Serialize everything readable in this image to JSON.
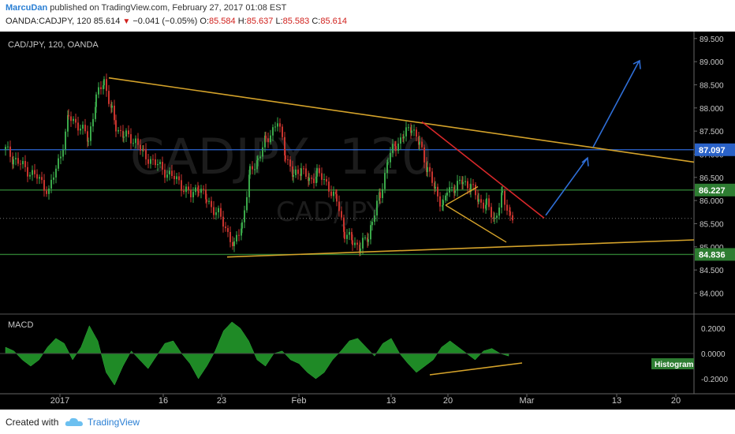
{
  "header": {
    "author": "MarcuDan",
    "published_text": "published on TradingView.com, February 27, 2017 01:08 EST",
    "symbol_info": "OANDA:CADJPY, 120",
    "last": "85.614",
    "down_arrow": "▼",
    "change": "−0.041 (−0.05%)",
    "o_label": "O:",
    "o_value": "85.584",
    "h_label": "H:",
    "h_value": "85.637",
    "l_label": "L:",
    "l_value": "85.583",
    "c_label": "C:",
    "c_value": "85.614"
  },
  "footer": {
    "created_with": "Created with",
    "brand": "TradingView"
  },
  "chart_data": {
    "type": "candlestick",
    "title": "CAD/JPY, 120, OANDA",
    "watermark_big": "CADJPY, 120",
    "watermark_small": "CAD/JPY",
    "y_ticks": [
      "89.500",
      "89.000",
      "88.500",
      "88.000",
      "87.500",
      "87.000",
      "86.500",
      "86.000",
      "85.500",
      "85.000",
      "84.500",
      "84.000"
    ],
    "ylim": [
      83.65,
      89.65
    ],
    "x_ticks": [
      "2017",
      "16",
      "23",
      "Feb",
      "13",
      "20",
      "Mar",
      "13",
      "20"
    ],
    "price_labels": [
      {
        "value": "87.097",
        "color": "#2a62c8"
      },
      {
        "value": "86.227",
        "color": "#2e7d32"
      },
      {
        "value": "84.836",
        "color": "#2e7d32"
      }
    ],
    "horizontal_lines": [
      {
        "value": 87.097,
        "color": "#2d66d2"
      },
      {
        "value": 86.227,
        "color": "#2e7d32"
      },
      {
        "value": 84.836,
        "color": "#2e7d32"
      }
    ],
    "series": [
      {
        "name": "Close",
        "x": [
          0,
          10,
          25,
          40,
          55,
          70,
          80,
          95,
          105,
          115,
          125,
          135,
          140,
          150,
          165,
          175,
          190,
          205,
          220,
          235,
          245,
          255,
          270,
          285,
          290,
          300,
          310,
          320,
          330,
          345,
          355,
          365,
          375,
          385,
          395,
          410,
          420,
          430,
          440,
          450,
          460,
          465,
          475,
          485,
          495,
          505,
          515,
          525,
          535,
          545,
          555,
          560,
          570,
          580,
          590,
          600,
          610,
          620,
          630,
          640,
          645
        ],
        "values": [
          87.1,
          86.9,
          86.7,
          86.5,
          86.2,
          87.0,
          87.8,
          87.6,
          87.3,
          88.2,
          88.6,
          87.9,
          87.6,
          87.4,
          87.3,
          87.0,
          86.8,
          86.6,
          86.4,
          86.1,
          86.3,
          86.0,
          85.7,
          85.2,
          85.0,
          85.5,
          86.6,
          86.9,
          87.3,
          87.7,
          87.0,
          86.5,
          86.7,
          86.4,
          86.6,
          86.3,
          86.0,
          85.3,
          85.1,
          85.0,
          85.2,
          85.6,
          86.1,
          86.9,
          87.2,
          87.4,
          87.6,
          87.2,
          86.7,
          86.2,
          85.9,
          86.2,
          86.3,
          86.4,
          86.3,
          86.0,
          85.9,
          85.6,
          86.1,
          85.7,
          85.6
        ]
      },
      {
        "name": "MACD",
        "values": [
          0.05,
          0.02,
          -0.05,
          -0.1,
          -0.05,
          0.05,
          0.12,
          0.08,
          -0.05,
          0.05,
          0.22,
          0.1,
          -0.15,
          -0.25,
          -0.1,
          0.02,
          -0.05,
          -0.12,
          -0.02,
          0.08,
          0.1,
          0.0,
          -0.08,
          -0.2,
          -0.1,
          0.02,
          0.18,
          0.25,
          0.2,
          0.1,
          -0.05,
          -0.1,
          0.0,
          0.02,
          -0.05,
          -0.08,
          -0.15,
          -0.2,
          -0.15,
          -0.05,
          0.02,
          0.1,
          0.12,
          0.05,
          -0.02,
          0.08,
          0.12,
          0.0,
          -0.08,
          -0.15,
          -0.1,
          -0.05,
          0.05,
          0.1,
          0.05,
          0.0,
          -0.05,
          0.02,
          0.04,
          0.0,
          -0.02
        ]
      }
    ],
    "macd": {
      "label": "MACD",
      "ticks": [
        "0.2000",
        "0.0000",
        "-0.2000"
      ],
      "badge": "Histogram"
    }
  }
}
